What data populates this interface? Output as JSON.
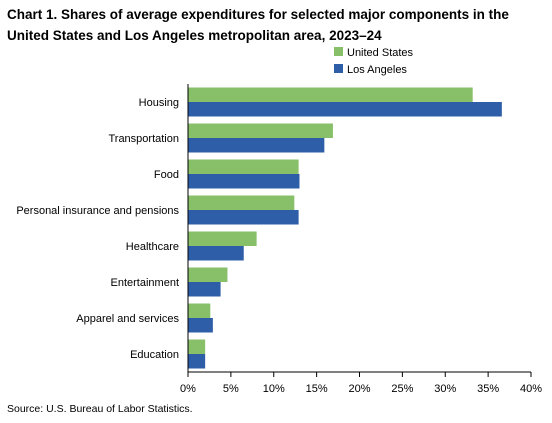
{
  "title": "Chart 1. Shares of average expenditures for selected major components in the United States and Los Angeles metropolitan area, 2023–24",
  "source": "Source: U.S. Bureau of Labor Statistics.",
  "chart_data": {
    "type": "bar",
    "orientation": "horizontal",
    "categories": [
      "Housing",
      "Transportation",
      "Food",
      "Personal insurance and pensions",
      "Healthcare",
      "Entertainment",
      "Apparel and services",
      "Education"
    ],
    "series": [
      {
        "name": "United States",
        "color": "#87c068",
        "values": [
          33.2,
          16.9,
          12.9,
          12.4,
          8.0,
          4.6,
          2.6,
          2.0
        ]
      },
      {
        "name": "Los Angeles",
        "color": "#2e5ea8",
        "values": [
          36.6,
          15.9,
          13.0,
          12.9,
          6.5,
          3.8,
          2.9,
          2.0
        ]
      }
    ],
    "xlim": [
      0,
      40
    ],
    "xticks": [
      0,
      5,
      10,
      15,
      20,
      25,
      30,
      35,
      40
    ],
    "xtick_labels": [
      "0%",
      "5%",
      "10%",
      "15%",
      "20%",
      "25%",
      "30%",
      "35%",
      "40%"
    ],
    "xlabel": "",
    "ylabel": "",
    "grid": false,
    "legend_position": "top-right"
  }
}
